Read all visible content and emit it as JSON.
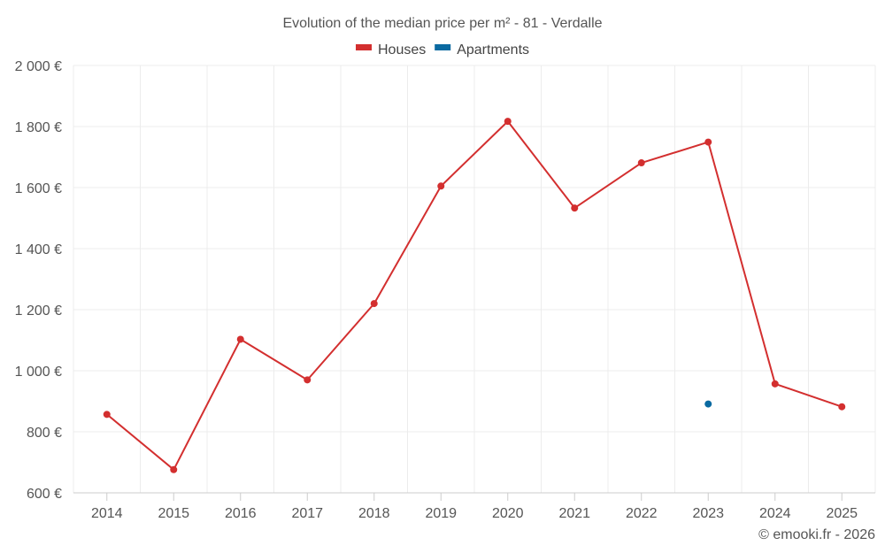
{
  "chart_data": {
    "type": "line",
    "title": "Evolution of the median price per m² - 81 - Verdalle",
    "credit": "© emooki.fr - 2026",
    "xlabel": "",
    "ylabel": "",
    "categories": [
      "2014",
      "2015",
      "2016",
      "2017",
      "2018",
      "2019",
      "2020",
      "2021",
      "2022",
      "2023",
      "2024",
      "2025"
    ],
    "ylim": [
      600,
      2000
    ],
    "yticks": [
      600,
      800,
      1000,
      1200,
      1400,
      1600,
      1800,
      2000
    ],
    "ytick_labels": [
      "600 €",
      "800 €",
      "1 000 €",
      "1 200 €",
      "1 400 €",
      "1 600 €",
      "1 800 €",
      "2 000 €"
    ],
    "grid": true,
    "legend_position": "top-center",
    "series": [
      {
        "name": "Houses",
        "color": "#d32f2f",
        "values": [
          857,
          676,
          1103,
          970,
          1220,
          1605,
          1817,
          1533,
          1681,
          1749,
          957,
          882
        ]
      },
      {
        "name": "Apartments",
        "color": "#0a6aa1",
        "values": [
          null,
          null,
          null,
          null,
          null,
          null,
          null,
          null,
          null,
          891,
          null,
          null
        ]
      }
    ]
  }
}
